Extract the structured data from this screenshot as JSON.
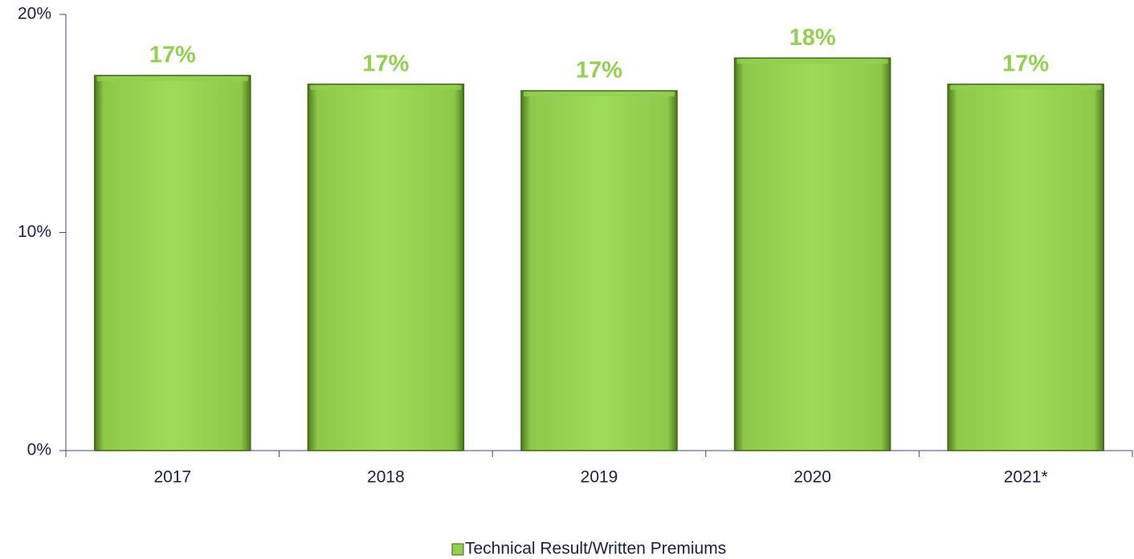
{
  "chart_data": {
    "type": "bar",
    "categories": [
      "2017",
      "2018",
      "2019",
      "2020",
      "2021*"
    ],
    "series": [
      {
        "name": "Technical Result/Written Premiums",
        "color": "#92d050",
        "values": [
          17.2,
          16.8,
          16.5,
          18.0,
          16.8
        ],
        "value_labels": [
          "17%",
          "17%",
          "17%",
          "18%",
          "17%"
        ]
      }
    ],
    "ylim": [
      0,
      20
    ],
    "yticks": [
      {
        "value": 0,
        "label": "0%"
      },
      {
        "value": 10,
        "label": "10%"
      },
      {
        "value": 20,
        "label": "20%"
      }
    ],
    "legend": "bottom"
  }
}
